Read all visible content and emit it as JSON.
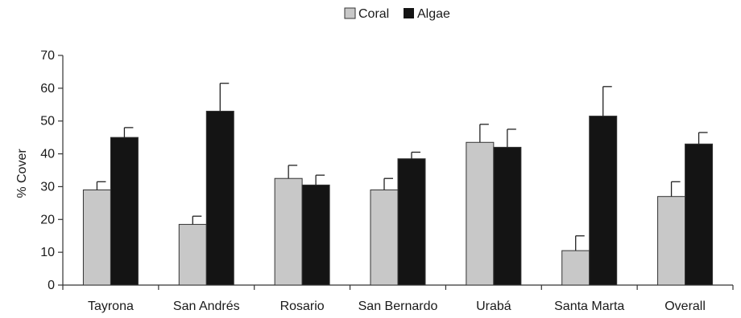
{
  "chart_data": {
    "type": "bar",
    "title": "",
    "xlabel": "",
    "ylabel": "% Cover",
    "ylim": [
      0,
      70
    ],
    "yticks": [
      0,
      10,
      20,
      30,
      40,
      50,
      60,
      70
    ],
    "categories": [
      "Tayrona",
      "San Andrés",
      "Rosario",
      "San Bernardo",
      "Urabá",
      "Santa Marta",
      "Overall"
    ],
    "series": [
      {
        "name": "Coral",
        "color": "#c8c8c8",
        "values": [
          29,
          18.5,
          32.5,
          29,
          43.5,
          10.5,
          27
        ],
        "error": [
          2.5,
          2.5,
          4,
          3.5,
          5.5,
          4.5,
          4.5
        ]
      },
      {
        "name": "Algae",
        "color": "#141414",
        "values": [
          45,
          53,
          30.5,
          38.5,
          42,
          51.5,
          43
        ],
        "error": [
          3,
          8.5,
          3,
          2,
          5.5,
          9,
          3.5
        ]
      }
    ],
    "grid": false,
    "legend_position": "top-center"
  }
}
